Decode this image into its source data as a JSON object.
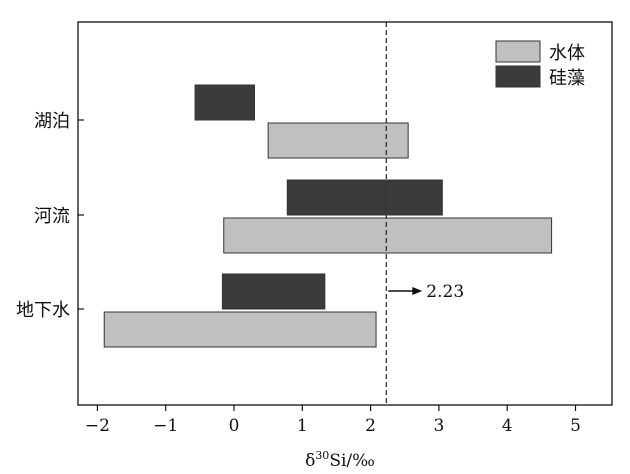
{
  "chart_data": {
    "type": "bar",
    "orientation": "horizontal-range",
    "xlabel_prefix": "δ",
    "xlabel_sup": "30",
    "xlabel_rest": "Si/‰",
    "xlim": [
      -2.3,
      5.5
    ],
    "ticks": [
      -2,
      -1,
      0,
      1,
      2,
      3,
      4,
      5
    ],
    "tick_labels": [
      "−2",
      "−1",
      "0",
      "1",
      "2",
      "3",
      "4",
      "5"
    ],
    "categories": [
      "湖泊",
      "河流",
      "地下水"
    ],
    "series": [
      {
        "name": "水体",
        "color": "#c0c0c0",
        "ranges": [
          [
            0.5,
            2.55
          ],
          [
            -0.15,
            4.65
          ],
          [
            -1.9,
            2.08
          ]
        ]
      },
      {
        "name": "硅藻",
        "color": "#3b3b3b",
        "ranges": [
          [
            -0.57,
            0.3
          ],
          [
            0.78,
            3.05
          ],
          [
            -0.17,
            1.33
          ]
        ]
      }
    ],
    "reference_line": {
      "x": 2.23,
      "label": "2.23",
      "style": "dashed"
    },
    "legend_position": "top-right",
    "grid": false
  }
}
